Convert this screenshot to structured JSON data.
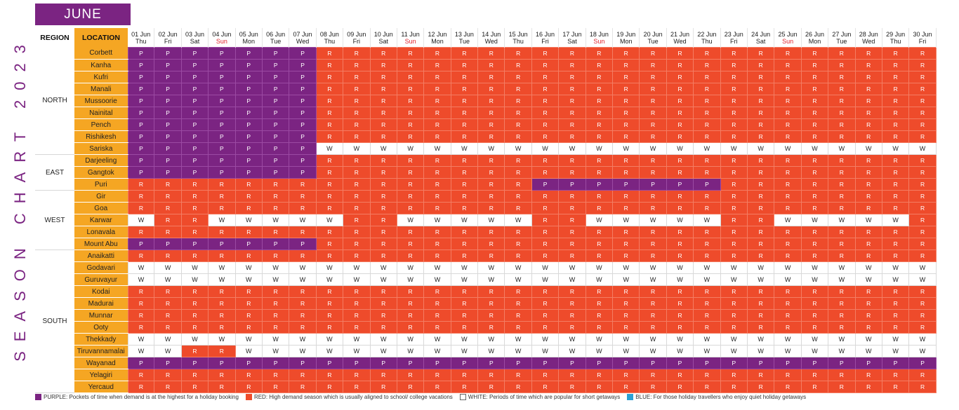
{
  "title": "SEASON CHART 2023",
  "month": "JUNE",
  "headers": {
    "region": "REGION",
    "location": "LOCATION"
  },
  "days": [
    {
      "d": "01 Jun",
      "w": "Thu"
    },
    {
      "d": "02 Jun",
      "w": "Fri"
    },
    {
      "d": "03 Jun",
      "w": "Sat"
    },
    {
      "d": "04 Jun",
      "w": "Sun"
    },
    {
      "d": "05 Jun",
      "w": "Mon"
    },
    {
      "d": "06 Jun",
      "w": "Tue"
    },
    {
      "d": "07 Jun",
      "w": "Wed"
    },
    {
      "d": "08 Jun",
      "w": "Thu"
    },
    {
      "d": "09 Jun",
      "w": "Fri"
    },
    {
      "d": "10 Jun",
      "w": "Sat"
    },
    {
      "d": "11 Jun",
      "w": "Sun"
    },
    {
      "d": "12 Jun",
      "w": "Mon"
    },
    {
      "d": "13 Jun",
      "w": "Tue"
    },
    {
      "d": "14 Jun",
      "w": "Wed"
    },
    {
      "d": "15 Jun",
      "w": "Thu"
    },
    {
      "d": "16 Jun",
      "w": "Fri"
    },
    {
      "d": "17 Jun",
      "w": "Sat"
    },
    {
      "d": "18 Jun",
      "w": "Sun"
    },
    {
      "d": "19 Jun",
      "w": "Mon"
    },
    {
      "d": "20 Jun",
      "w": "Tue"
    },
    {
      "d": "21 Jun",
      "w": "Wed"
    },
    {
      "d": "22 Jun",
      "w": "Thu"
    },
    {
      "d": "23 Jun",
      "w": "Fri"
    },
    {
      "d": "24 Jun",
      "w": "Sat"
    },
    {
      "d": "25 Jun",
      "w": "Sun"
    },
    {
      "d": "26 Jun",
      "w": "Mon"
    },
    {
      "d": "27 Jun",
      "w": "Tue"
    },
    {
      "d": "28 Jun",
      "w": "Wed"
    },
    {
      "d": "29 Jun",
      "w": "Thu"
    },
    {
      "d": "30 Jun",
      "w": "Fri"
    }
  ],
  "regions": [
    {
      "name": "NORTH",
      "rows": [
        {
          "loc": "Corbett",
          "s": "PPPPPPPRRRRRRRRRRRRRRRRRRRRRRR"
        },
        {
          "loc": "Kanha",
          "s": "PPPPPPPRRRRRRRRRRRRRRRRRRRRRRR"
        },
        {
          "loc": "Kufri",
          "s": "PPPPPPPRRRRRRRRRRRRRRRRRRRRRRR"
        },
        {
          "loc": "Manali",
          "s": "PPPPPPPRRRRRRRRRRRRRRRRRRRRRRR"
        },
        {
          "loc": "Mussoorie",
          "s": "PPPPPPPRRRRRRRRRRRRRRRRRRRRRRR"
        },
        {
          "loc": "Nainital",
          "s": "PPPPPPPRRRRRRRRRRRRRRRRRRRRRRR"
        },
        {
          "loc": "Pench",
          "s": "PPPPPPPRRRRRRRRRRRRRRRRRRRRRRR"
        },
        {
          "loc": "Rishikesh",
          "s": "PPPPPPPRRRRRRRRRRRRRRRRRRRRRRR"
        },
        {
          "loc": "Sariska",
          "s": "PPPPPPPWWWWWWWWWWWWWWWWWWWWWWW"
        }
      ]
    },
    {
      "name": "EAST",
      "rows": [
        {
          "loc": "Darjeeling",
          "s": "PPPPPPPRRRRRRRRRRRRRRRRRRRRRRR"
        },
        {
          "loc": "Gangtok",
          "s": "PPPPPPPRRRRRRRRRRRRRRRRRRRRRRR"
        },
        {
          "loc": "Puri",
          "s": "RRRRRRRRRRRRRRRPPPPPPPRRRRRRRR"
        }
      ]
    },
    {
      "name": "WEST",
      "rows": [
        {
          "loc": "Gir",
          "s": "RRRRRRRRRRRRRRRRRRRRRRRRRRRRRR"
        },
        {
          "loc": "Goa",
          "s": "RRRRRRRRRRRRRRRRRRRRRRRRRRRRRR"
        },
        {
          "loc": "Karwar",
          "s": "WRRWWWWWRRWWWWWRRWWWWWRRWWWWWR"
        },
        {
          "loc": "Lonavala",
          "s": "RRRRRRRRRRRRRRRRRRRRRRRRRRRRRR"
        },
        {
          "loc": "Mount Abu",
          "s": "PPPPPPPRRRRRRRRRRRRRRRRRRRRRRR"
        }
      ]
    },
    {
      "name": "SOUTH",
      "rows": [
        {
          "loc": "Anaikatti",
          "s": "RRRRRRRRRRRRRRRRRRRRRRRRRRRRRR"
        },
        {
          "loc": "Godavari",
          "s": "WWWWWWWWWWWWWWWWWWWWWWWWWWWWWW"
        },
        {
          "loc": "Guruvayur",
          "s": "WWWWWWWWWWWWWWWWWWWWWWWWWWWWWW"
        },
        {
          "loc": "Kodai",
          "s": "RRRRRRRRRRRRRRRRRRRRRRRRRRRRRR"
        },
        {
          "loc": "Madurai",
          "s": "RRRRRRRRRRRRRRRRRRRRRRRRRRRRRR"
        },
        {
          "loc": "Munnar",
          "s": "RRRRRRRRRRRRRRRRRRRRRRRRRRRRRR"
        },
        {
          "loc": "Ooty",
          "s": "RRRRRRRRRRRRRRRRRRRRRRRRRRRRRR"
        },
        {
          "loc": "Thekkady",
          "s": "WWWWWWWWWWWWWWWWWWWWWWWWWWWWWW"
        },
        {
          "loc": "Tiruvannamalai",
          "s": "WWRRWWWWWWWWWWWWWWWWWWWWWWWWWW"
        },
        {
          "loc": "Wayanad",
          "s": "PPPPPPPPPPPPPPPPPPPPPPPPPPPPPP"
        },
        {
          "loc": "Yelagiri",
          "s": "RRRRRRRRRRRRRRRRRRRRRRRRRRRRRR"
        },
        {
          "loc": "Yercaud",
          "s": "RRRRRRRRRRRRRRRRRRRRRRRRRRRRRR"
        }
      ]
    }
  ],
  "legend": [
    {
      "color": "#7b2482",
      "text": "PURPLE: Pockets of time when demand is at the highest for a holiday booking"
    },
    {
      "color": "#ee4b2b",
      "text": "RED: High demand season which is usually aligned to school/ college vacations"
    },
    {
      "color": "#ffffff",
      "text": "WHITE: Periods of time which are popular for short getaways"
    },
    {
      "color": "#2aa0d4",
      "text": "BLUE: For those holiday travellers who enjoy quiet holiday getaways"
    }
  ],
  "colors": {
    "purple": "#7b2482",
    "red": "#ee4b2b",
    "white": "#ffffff",
    "blue": "#2aa0d4",
    "location_bg": "#f5a623",
    "sunday": "#e0222b"
  }
}
